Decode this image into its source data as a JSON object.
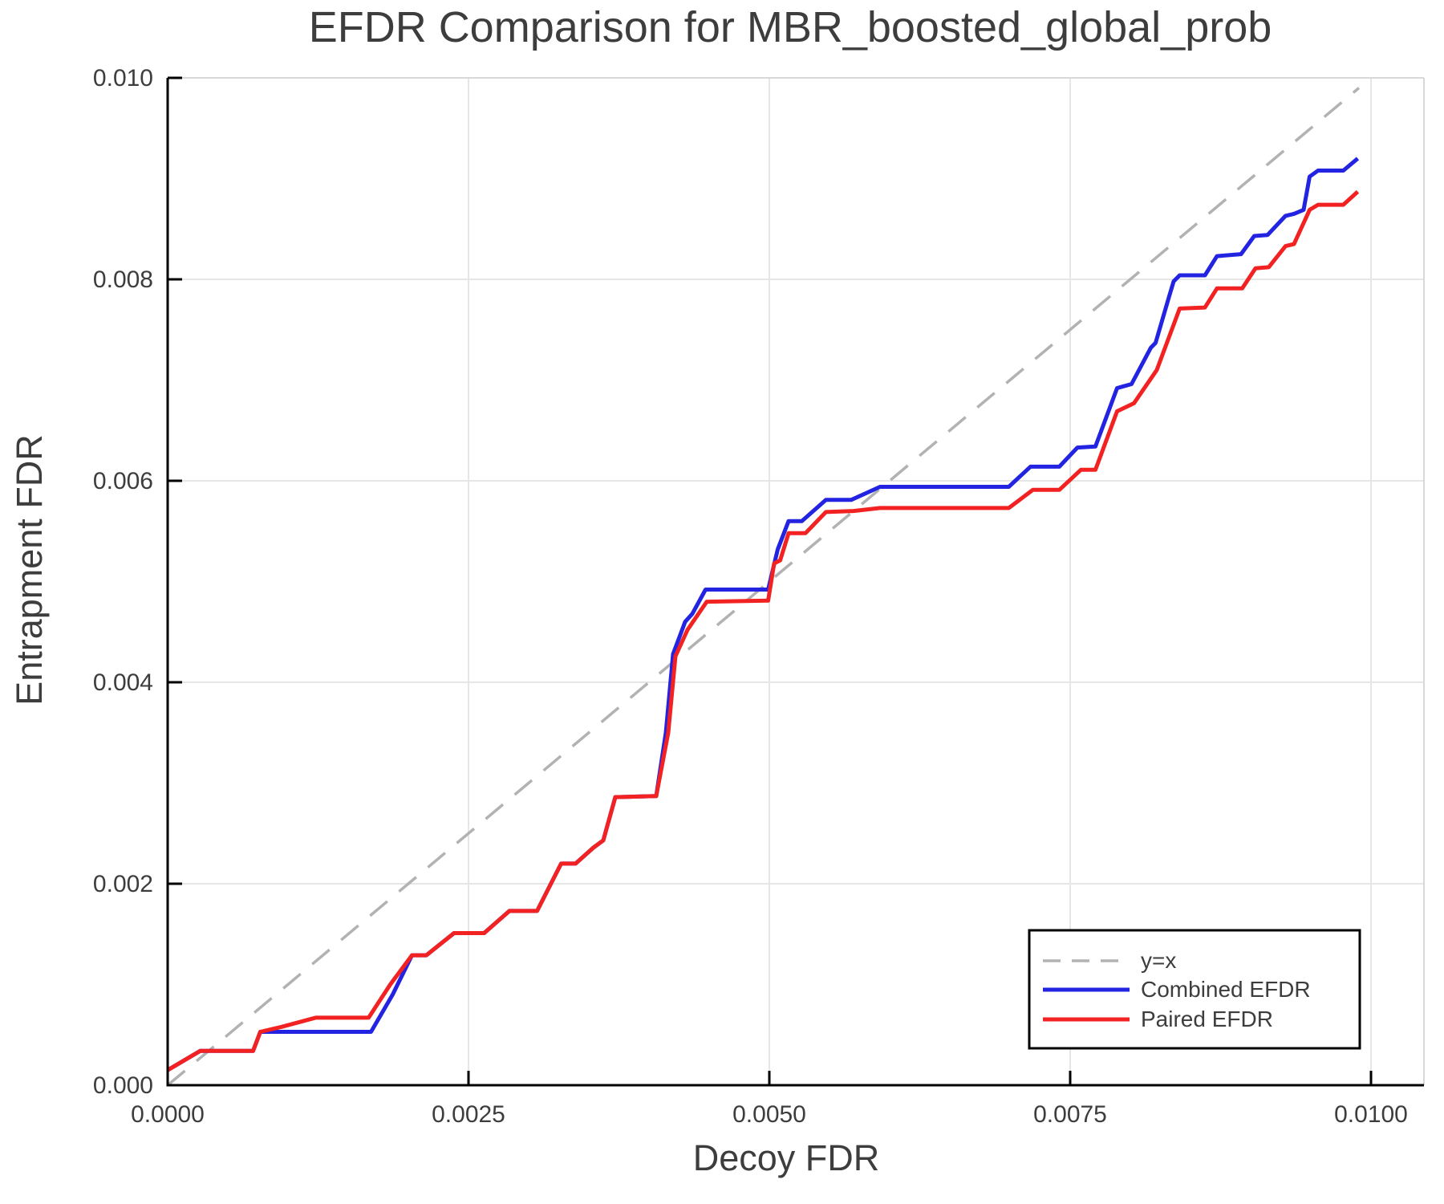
{
  "chart_data": {
    "type": "line",
    "title": "EFDR Comparison for MBR_boosted_global_prob",
    "xlabel": "Decoy FDR",
    "ylabel": "Entrapment FDR",
    "xlim": [
      0.0,
      0.01044
    ],
    "ylim": [
      0.0,
      0.01
    ],
    "grid": true,
    "legend_position": "bottom-right",
    "x_ticks": {
      "values": [
        0.0,
        0.0025,
        0.005,
        0.0075,
        0.01
      ],
      "labels": [
        "0.0000",
        "0.0025",
        "0.0050",
        "0.0075",
        "0.0100"
      ]
    },
    "y_ticks": {
      "values": [
        0.0,
        0.002,
        0.004,
        0.006,
        0.008,
        0.01
      ],
      "labels": [
        "0.000",
        "0.002",
        "0.004",
        "0.006",
        "0.008",
        "0.010"
      ]
    },
    "series": [
      {
        "name": "y=x",
        "color": "#b2b2b2",
        "dash": true,
        "width": 3.5,
        "points": [
          [
            0.0,
            0.0
          ],
          [
            0.0099,
            0.0099
          ]
        ]
      },
      {
        "name": "Combined EFDR",
        "color": "#2323e2",
        "dash": false,
        "width": 5,
        "points": [
          [
            0.0,
            0.00015
          ],
          [
            0.00027,
            0.00034
          ],
          [
            0.00071,
            0.00034
          ],
          [
            0.00077,
            0.00053
          ],
          [
            0.00169,
            0.00053
          ],
          [
            0.00187,
            0.0009
          ],
          [
            0.00203,
            0.00129
          ],
          [
            0.00215,
            0.00129
          ],
          [
            0.00238,
            0.00151
          ],
          [
            0.00263,
            0.00151
          ],
          [
            0.00284,
            0.00173
          ],
          [
            0.00307,
            0.00173
          ],
          [
            0.00327,
            0.0022
          ],
          [
            0.00339,
            0.0022
          ],
          [
            0.00354,
            0.00236
          ],
          [
            0.00362,
            0.00243
          ],
          [
            0.00372,
            0.00286
          ],
          [
            0.00406,
            0.00287
          ],
          [
            0.00414,
            0.0035
          ],
          [
            0.0042,
            0.00428
          ],
          [
            0.0043,
            0.0046
          ],
          [
            0.00436,
            0.00468
          ],
          [
            0.00447,
            0.00492
          ],
          [
            0.00499,
            0.00492
          ],
          [
            0.00507,
            0.00532
          ],
          [
            0.00516,
            0.0056
          ],
          [
            0.00527,
            0.0056
          ],
          [
            0.00547,
            0.00581
          ],
          [
            0.00568,
            0.00581
          ],
          [
            0.00592,
            0.00594
          ],
          [
            0.00699,
            0.00594
          ],
          [
            0.00717,
            0.00614
          ],
          [
            0.00741,
            0.00614
          ],
          [
            0.00756,
            0.00633
          ],
          [
            0.00771,
            0.00634
          ],
          [
            0.00789,
            0.00692
          ],
          [
            0.00801,
            0.00696
          ],
          [
            0.00817,
            0.00732
          ],
          [
            0.00821,
            0.00737
          ],
          [
            0.00832,
            0.00782
          ],
          [
            0.00836,
            0.00798
          ],
          [
            0.00841,
            0.00804
          ],
          [
            0.00862,
            0.00804
          ],
          [
            0.00872,
            0.00823
          ],
          [
            0.00892,
            0.00825
          ],
          [
            0.00903,
            0.00843
          ],
          [
            0.00914,
            0.00844
          ],
          [
            0.00929,
            0.00863
          ],
          [
            0.00936,
            0.00865
          ],
          [
            0.00944,
            0.00869
          ],
          [
            0.00949,
            0.00902
          ],
          [
            0.00956,
            0.00908
          ],
          [
            0.00977,
            0.00908
          ],
          [
            0.00989,
            0.0092
          ]
        ]
      },
      {
        "name": "Paired EFDR",
        "color": "#f22222",
        "dash": false,
        "width": 5,
        "points": [
          [
            0.0,
            0.00015
          ],
          [
            0.00027,
            0.00034
          ],
          [
            0.00071,
            0.00034
          ],
          [
            0.00077,
            0.00053
          ],
          [
            0.00095,
            0.00058
          ],
          [
            0.00123,
            0.00067
          ],
          [
            0.00167,
            0.00067
          ],
          [
            0.00185,
            0.001
          ],
          [
            0.00203,
            0.00129
          ],
          [
            0.00215,
            0.00129
          ],
          [
            0.00238,
            0.00151
          ],
          [
            0.00263,
            0.00151
          ],
          [
            0.00284,
            0.00173
          ],
          [
            0.00307,
            0.00173
          ],
          [
            0.00327,
            0.0022
          ],
          [
            0.00339,
            0.0022
          ],
          [
            0.00354,
            0.00236
          ],
          [
            0.00362,
            0.00243
          ],
          [
            0.00372,
            0.00286
          ],
          [
            0.00406,
            0.00287
          ],
          [
            0.00416,
            0.0035
          ],
          [
            0.00422,
            0.00426
          ],
          [
            0.00432,
            0.00452
          ],
          [
            0.00448,
            0.0048
          ],
          [
            0.00499,
            0.00481
          ],
          [
            0.00504,
            0.00518
          ],
          [
            0.00509,
            0.00521
          ],
          [
            0.00516,
            0.00548
          ],
          [
            0.0053,
            0.00548
          ],
          [
            0.00547,
            0.00569
          ],
          [
            0.0057,
            0.0057
          ],
          [
            0.00592,
            0.00573
          ],
          [
            0.00699,
            0.00573
          ],
          [
            0.00719,
            0.00591
          ],
          [
            0.00741,
            0.00591
          ],
          [
            0.00759,
            0.00611
          ],
          [
            0.00771,
            0.00611
          ],
          [
            0.00789,
            0.00669
          ],
          [
            0.00803,
            0.00677
          ],
          [
            0.00822,
            0.0071
          ],
          [
            0.00841,
            0.00771
          ],
          [
            0.00862,
            0.00772
          ],
          [
            0.00872,
            0.00791
          ],
          [
            0.00893,
            0.00791
          ],
          [
            0.00904,
            0.00811
          ],
          [
            0.00915,
            0.00812
          ],
          [
            0.00929,
            0.00833
          ],
          [
            0.00936,
            0.00835
          ],
          [
            0.00949,
            0.00869
          ],
          [
            0.00956,
            0.00874
          ],
          [
            0.00977,
            0.00874
          ],
          [
            0.00988,
            0.00886
          ],
          [
            0.00989,
            0.00887
          ]
        ]
      }
    ]
  },
  "legend": {
    "items": [
      {
        "label": "y=x",
        "color": "#b2b2b2",
        "dash": true
      },
      {
        "label": "Combined EFDR",
        "color": "#2323e2",
        "dash": false
      },
      {
        "label": "Paired EFDR",
        "color": "#f22222",
        "dash": false
      }
    ]
  },
  "style_colors": {
    "grid": "#e6e6e6",
    "panel_border": "#d8d8d8",
    "spine": "#000000",
    "text": "#3d3d3d",
    "background": "#ffffff"
  }
}
